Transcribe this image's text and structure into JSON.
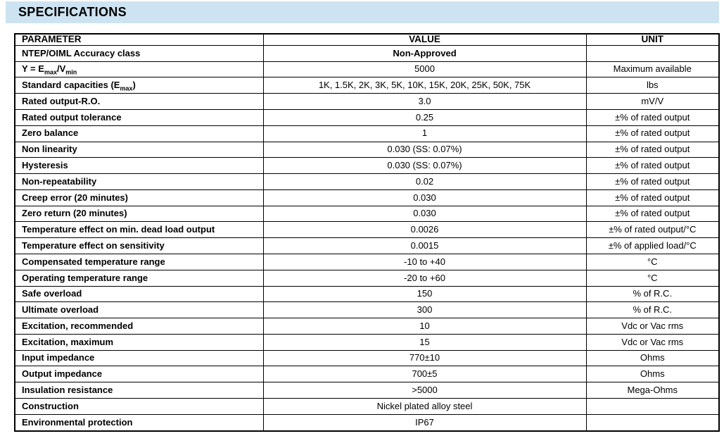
{
  "header": {
    "title": "SPECIFICATIONS"
  },
  "colors": {
    "header_bar_bg": "#cde3f1",
    "text": "#000000",
    "border": "#000000"
  },
  "table": {
    "headers": [
      "PARAMETER",
      "VALUE",
      "UNIT"
    ],
    "rows": [
      {
        "param": "NTEP/OIML Accuracy class",
        "value": "Non-Approved",
        "unit": "",
        "bold_value": true
      },
      {
        "param": "Y = E~max~/V~min~",
        "value": "5000",
        "unit": "Maximum available"
      },
      {
        "param": "Standard capacities (E~max~)",
        "value": "1K, 1.5K, 2K, 3K, 5K, 10K, 15K, 20K, 25K, 50K, 75K",
        "unit": "lbs"
      },
      {
        "param": "Rated output-R.O.",
        "value": "3.0",
        "unit": "mV/V"
      },
      {
        "param": "Rated output tolerance",
        "value": "0.25",
        "unit": "±% of rated output"
      },
      {
        "param": "Zero balance",
        "value": "1",
        "unit": "±% of rated output"
      },
      {
        "param": "Non linearity",
        "value": "0.030 (SS: 0.07%)",
        "unit": "±% of rated output"
      },
      {
        "param": "Hysteresis",
        "value": "0.030 (SS: 0.07%)",
        "unit": "±% of rated output"
      },
      {
        "param": "Non-repeatability",
        "value": "0.02",
        "unit": "±% of rated output"
      },
      {
        "param": "Creep error (20 minutes)",
        "value": "0.030",
        "unit": "±% of rated output"
      },
      {
        "param": "Zero return (20 minutes)",
        "value": "0.030",
        "unit": "±% of rated output"
      },
      {
        "param": "Temperature effect on min. dead load output",
        "value": "0.0026",
        "unit": "±% of rated output/°C"
      },
      {
        "param": "Temperature effect on sensitivity",
        "value": "0.0015",
        "unit": "±% of applied load/°C"
      },
      {
        "param": "Compensated temperature range",
        "value": "-10 to +40",
        "unit": "°C"
      },
      {
        "param": "Operating temperature range",
        "value": "-20 to +60",
        "unit": "°C"
      },
      {
        "param": "Safe overload",
        "value": "150",
        "unit": "% of R.C."
      },
      {
        "param": "Ultimate overload",
        "value": "300",
        "unit": "% of R.C."
      },
      {
        "param": "Excitation, recommended",
        "value": "10",
        "unit": "Vdc or Vac rms"
      },
      {
        "param": "Excitation, maximum",
        "value": "15",
        "unit": "Vdc or Vac rms"
      },
      {
        "param": "Input impedance",
        "value": "770±10",
        "unit": "Ohms"
      },
      {
        "param": "Output impedance",
        "value": "700±5",
        "unit": "Ohms"
      },
      {
        "param": "Insulation resistance",
        "value": ">5000",
        "unit": "Mega-Ohms"
      },
      {
        "param": "Construction",
        "value": "Nickel plated alloy steel",
        "unit": ""
      },
      {
        "param": "Environmental protection",
        "value": "IP67",
        "unit": ""
      }
    ]
  }
}
